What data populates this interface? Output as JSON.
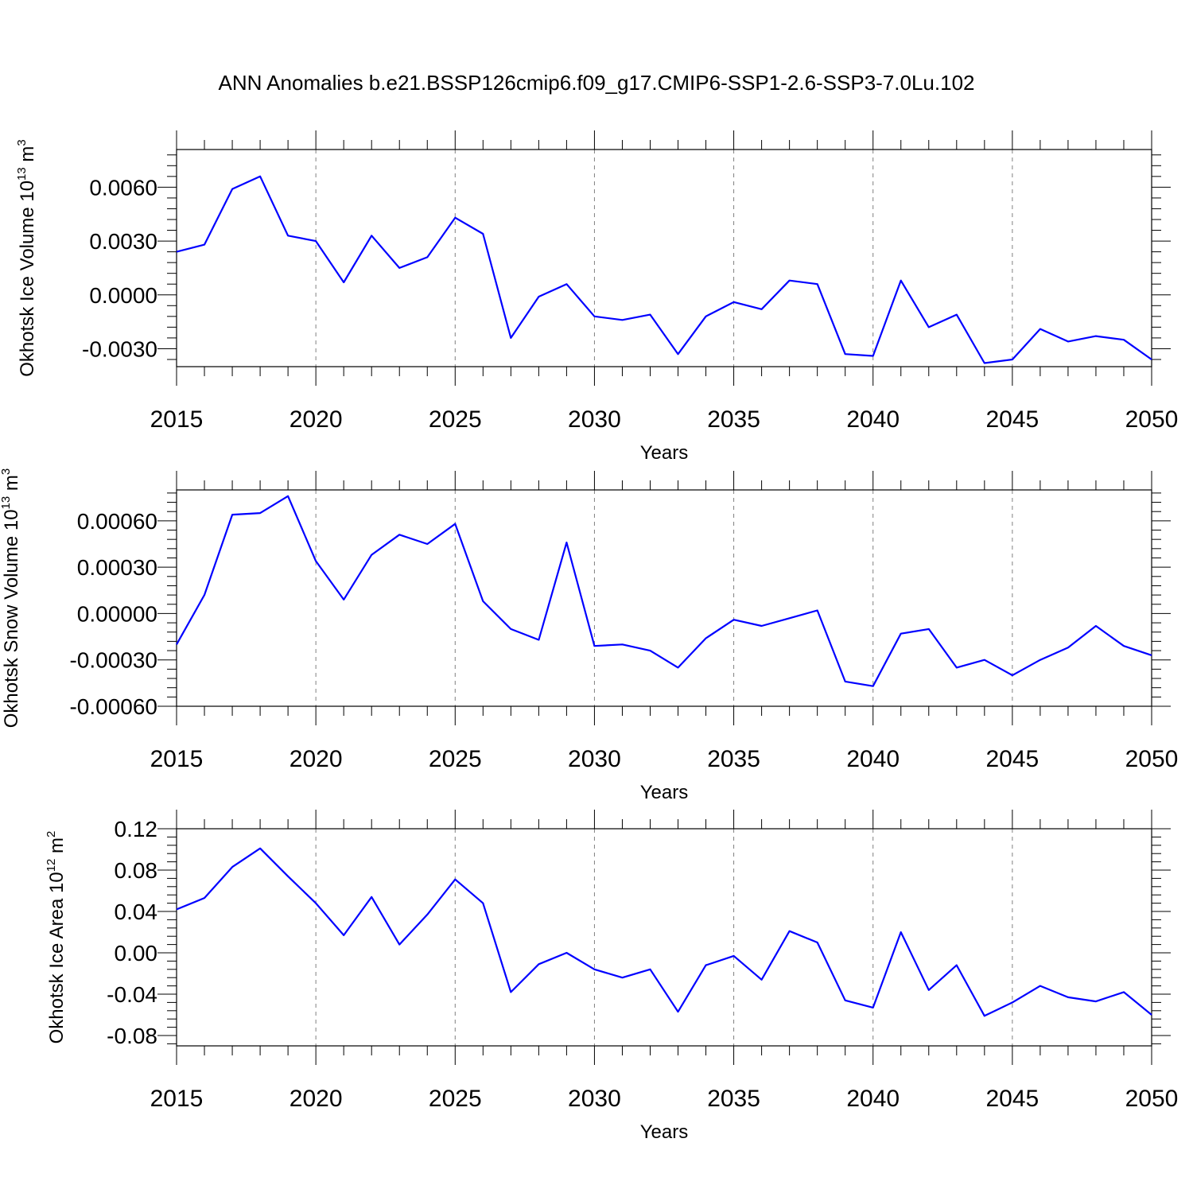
{
  "title": "ANN Anomalies b.e21.BSSP126cmip6.f09_g17.CMIP6-SSP1-2.6-SSP3-7.0Lu.102",
  "colors": {
    "line": "#0000ff",
    "axis": "#000000",
    "grid": "#808080"
  },
  "chart_data": [
    {
      "type": "line",
      "ylabel": {
        "text": "Okhotsk Ice Volume 10",
        "sup": "13",
        "unit": " m",
        "unit_sup": "3"
      },
      "xlabel": "Years",
      "xlim": [
        2015,
        2050
      ],
      "ylim": [
        -0.004,
        0.0081
      ],
      "yticks": [
        {
          "value": 0.006,
          "label": "0.0060"
        },
        {
          "value": 0.003,
          "label": "0.0030"
        },
        {
          "value": 0.0,
          "label": "0.0000"
        },
        {
          "value": -0.003,
          "label": "-0.0030"
        }
      ],
      "xticks": [
        {
          "value": 2015,
          "label": "2015"
        },
        {
          "value": 2020,
          "label": "2020"
        },
        {
          "value": 2025,
          "label": "2025"
        },
        {
          "value": 2030,
          "label": "2030"
        },
        {
          "value": 2035,
          "label": "2035"
        },
        {
          "value": 2040,
          "label": "2040"
        },
        {
          "value": 2045,
          "label": "2045"
        },
        {
          "value": 2050,
          "label": "2050"
        }
      ],
      "x": [
        2015,
        2016,
        2017,
        2018,
        2019,
        2020,
        2021,
        2022,
        2023,
        2024,
        2025,
        2026,
        2027,
        2028,
        2029,
        2030,
        2031,
        2032,
        2033,
        2034,
        2035,
        2036,
        2037,
        2038,
        2039,
        2040,
        2041,
        2042,
        2043,
        2044,
        2045,
        2046,
        2047,
        2048,
        2049,
        2050
      ],
      "series": [
        {
          "name": "Okhotsk Ice Volume",
          "values": [
            0.0024,
            0.0028,
            0.0059,
            0.0066,
            0.0033,
            0.003,
            0.0007,
            0.0033,
            0.0015,
            0.0021,
            0.0043,
            0.0034,
            -0.0024,
            -0.0001,
            0.0006,
            -0.0012,
            -0.0014,
            -0.0011,
            -0.0033,
            -0.0012,
            -0.0004,
            -0.0008,
            0.0008,
            0.0006,
            -0.0033,
            -0.0034,
            0.0008,
            -0.0018,
            -0.0011,
            -0.0038,
            -0.0036,
            -0.0019,
            -0.0026,
            -0.0023,
            -0.0025,
            -0.0036
          ]
        }
      ]
    },
    {
      "type": "line",
      "ylabel": {
        "text": "Okhotsk Snow Volume 10",
        "sup": "13",
        "unit": " m",
        "unit_sup": "3"
      },
      "xlabel": "Years",
      "xlim": [
        2015,
        2050
      ],
      "ylim": [
        -0.0006,
        0.0008
      ],
      "yticks": [
        {
          "value": 0.0006,
          "label": "0.00060"
        },
        {
          "value": 0.0003,
          "label": "0.00030"
        },
        {
          "value": 0.0,
          "label": "0.00000"
        },
        {
          "value": -0.0003,
          "label": "-0.00030"
        },
        {
          "value": -0.0006,
          "label": "-0.00060"
        }
      ],
      "xticks": [
        {
          "value": 2015,
          "label": "2015"
        },
        {
          "value": 2020,
          "label": "2020"
        },
        {
          "value": 2025,
          "label": "2025"
        },
        {
          "value": 2030,
          "label": "2030"
        },
        {
          "value": 2035,
          "label": "2035"
        },
        {
          "value": 2040,
          "label": "2040"
        },
        {
          "value": 2045,
          "label": "2045"
        },
        {
          "value": 2050,
          "label": "2050"
        }
      ],
      "x": [
        2015,
        2016,
        2017,
        2018,
        2019,
        2020,
        2021,
        2022,
        2023,
        2024,
        2025,
        2026,
        2027,
        2028,
        2029,
        2030,
        2031,
        2032,
        2033,
        2034,
        2035,
        2036,
        2037,
        2038,
        2039,
        2040,
        2041,
        2042,
        2043,
        2044,
        2045,
        2046,
        2047,
        2048,
        2049,
        2050
      ],
      "series": [
        {
          "name": "Okhotsk Snow Volume",
          "values": [
            -0.0002,
            0.00012,
            0.00064,
            0.00065,
            0.00076,
            0.00034,
            9e-05,
            0.00038,
            0.00051,
            0.00045,
            0.00058,
            8e-05,
            -0.0001,
            -0.00017,
            0.00046,
            -0.00021,
            -0.0002,
            -0.00024,
            -0.00035,
            -0.00016,
            -4e-05,
            -8e-05,
            -3e-05,
            2e-05,
            -0.00044,
            -0.00047,
            -0.00013,
            -0.0001,
            -0.00035,
            -0.0003,
            -0.0004,
            -0.0003,
            -0.00022,
            -8e-05,
            -0.00021,
            -0.00027
          ]
        }
      ]
    },
    {
      "type": "line",
      "ylabel": {
        "text": "Okhotsk Ice Area 10",
        "sup": "12",
        "unit": " m",
        "unit_sup": "2"
      },
      "xlabel": "Years",
      "xlim": [
        2015,
        2050
      ],
      "ylim": [
        -0.09,
        0.12
      ],
      "yticks": [
        {
          "value": 0.12,
          "label": "0.12"
        },
        {
          "value": 0.08,
          "label": "0.08"
        },
        {
          "value": 0.04,
          "label": "0.04"
        },
        {
          "value": 0.0,
          "label": "0.00"
        },
        {
          "value": -0.04,
          "label": "-0.04"
        },
        {
          "value": -0.08,
          "label": "-0.08"
        }
      ],
      "xticks": [
        {
          "value": 2015,
          "label": "2015"
        },
        {
          "value": 2020,
          "label": "2020"
        },
        {
          "value": 2025,
          "label": "2025"
        },
        {
          "value": 2030,
          "label": "2030"
        },
        {
          "value": 2035,
          "label": "2035"
        },
        {
          "value": 2040,
          "label": "2040"
        },
        {
          "value": 2045,
          "label": "2045"
        },
        {
          "value": 2050,
          "label": "2050"
        }
      ],
      "x": [
        2015,
        2016,
        2017,
        2018,
        2019,
        2020,
        2021,
        2022,
        2023,
        2024,
        2025,
        2026,
        2027,
        2028,
        2029,
        2030,
        2031,
        2032,
        2033,
        2034,
        2035,
        2036,
        2037,
        2038,
        2039,
        2040,
        2041,
        2042,
        2043,
        2044,
        2045,
        2046,
        2047,
        2048,
        2049,
        2050
      ],
      "series": [
        {
          "name": "Okhotsk Ice Area",
          "values": [
            0.042,
            0.053,
            0.083,
            0.101,
            0.074,
            0.048,
            0.017,
            0.054,
            0.008,
            0.037,
            0.071,
            0.048,
            -0.038,
            -0.011,
            0.0,
            -0.016,
            -0.024,
            -0.016,
            -0.057,
            -0.012,
            -0.003,
            -0.026,
            0.021,
            0.01,
            -0.046,
            -0.053,
            0.02,
            -0.036,
            -0.012,
            -0.061,
            -0.048,
            -0.032,
            -0.043,
            -0.047,
            -0.038,
            -0.06
          ]
        }
      ]
    }
  ]
}
